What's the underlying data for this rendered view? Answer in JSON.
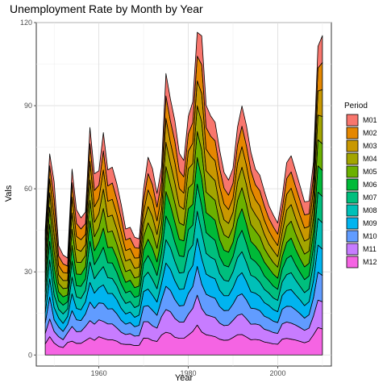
{
  "chart_data": {
    "type": "area",
    "stacked": true,
    "title": "Unemployment Rate by Month by Year",
    "xlabel": "Year",
    "ylabel": "Vals",
    "xlim": [
      1946,
      2012
    ],
    "ylim": [
      -4,
      120
    ],
    "x_ticks": [
      1960,
      1980,
      2000
    ],
    "y_ticks": [
      0,
      30,
      60,
      90,
      120
    ],
    "grid": true,
    "legend": {
      "title": "Period",
      "position": "right"
    },
    "x": [
      1948,
      1949,
      1950,
      1951,
      1952,
      1953,
      1954,
      1955,
      1956,
      1957,
      1958,
      1959,
      1960,
      1961,
      1962,
      1963,
      1964,
      1965,
      1966,
      1967,
      1968,
      1969,
      1970,
      1971,
      1972,
      1973,
      1974,
      1975,
      1976,
      1977,
      1978,
      1979,
      1980,
      1981,
      1982,
      1983,
      1984,
      1985,
      1986,
      1987,
      1988,
      1989,
      1990,
      1991,
      1992,
      1993,
      1994,
      1995,
      1996,
      1997,
      1998,
      1999,
      2000,
      2001,
      2002,
      2003,
      2004,
      2005,
      2006,
      2007,
      2008,
      2009,
      2010
    ],
    "series": [
      {
        "name": "M01",
        "color": "#F8766D",
        "values": [
          3.4,
          4.3,
          6.5,
          3.7,
          3.2,
          2.9,
          4.9,
          4.9,
          4.0,
          4.2,
          5.8,
          6.0,
          5.2,
          6.6,
          5.8,
          5.7,
          5.6,
          4.9,
          4.0,
          3.9,
          3.7,
          3.4,
          3.9,
          5.9,
          5.8,
          4.9,
          5.1,
          8.1,
          7.9,
          7.5,
          6.4,
          5.9,
          6.3,
          7.5,
          8.6,
          10.4,
          8.0,
          7.3,
          6.7,
          6.6,
          5.7,
          5.4,
          5.4,
          6.4,
          7.3,
          7.3,
          6.6,
          5.6,
          5.6,
          5.3,
          4.6,
          4.3,
          4.0,
          4.2,
          5.7,
          5.8,
          5.7,
          5.3,
          4.7,
          4.6,
          5.0,
          7.8,
          9.7
        ]
      },
      {
        "name": "M02",
        "color": "#E58700",
        "values": [
          3.8,
          4.7,
          6.4,
          3.4,
          3.1,
          2.6,
          5.2,
          4.7,
          3.9,
          3.9,
          6.4,
          5.9,
          4.8,
          6.9,
          5.5,
          5.9,
          5.4,
          5.1,
          3.8,
          3.8,
          3.8,
          3.4,
          4.2,
          5.9,
          5.7,
          5.0,
          5.2,
          8.1,
          7.7,
          7.6,
          6.3,
          5.9,
          6.3,
          7.4,
          8.9,
          10.4,
          7.8,
          7.2,
          7.2,
          6.6,
          5.7,
          5.2,
          5.3,
          6.6,
          7.4,
          7.1,
          6.6,
          5.4,
          5.5,
          5.2,
          4.6,
          4.4,
          4.1,
          4.2,
          5.7,
          5.9,
          5.6,
          5.4,
          4.8,
          4.5,
          4.8,
          8.3,
          9.8
        ]
      },
      {
        "name": "M03",
        "color": "#C99800",
        "values": [
          4.0,
          5.0,
          6.3,
          3.4,
          2.9,
          2.6,
          5.7,
          4.6,
          4.2,
          3.7,
          6.7,
          5.6,
          5.4,
          6.9,
          5.6,
          5.7,
          5.4,
          4.7,
          3.8,
          3.8,
          3.7,
          3.4,
          4.4,
          6.0,
          5.8,
          4.9,
          5.1,
          8.6,
          7.6,
          7.4,
          6.3,
          5.8,
          6.3,
          7.4,
          9.0,
          10.3,
          7.8,
          7.2,
          7.2,
          6.6,
          5.7,
          5.0,
          5.2,
          6.8,
          7.4,
          7.0,
          6.5,
          5.4,
          5.5,
          5.1,
          4.7,
          4.2,
          4.0,
          4.3,
          5.7,
          5.9,
          5.8,
          5.2,
          4.7,
          4.4,
          5.1,
          8.7,
          9.7
        ]
      },
      {
        "name": "M04",
        "color": "#A3A500",
        "values": [
          3.9,
          5.3,
          5.8,
          3.1,
          2.9,
          2.7,
          5.9,
          4.7,
          4.0,
          3.9,
          7.4,
          5.2,
          5.2,
          7.0,
          5.6,
          5.7,
          5.3,
          4.8,
          3.8,
          3.8,
          3.5,
          3.4,
          4.6,
          5.9,
          5.7,
          5.0,
          5.1,
          8.8,
          7.7,
          7.2,
          6.1,
          5.8,
          6.9,
          7.2,
          9.3,
          10.2,
          7.7,
          7.3,
          7.1,
          6.3,
          5.4,
          5.2,
          5.4,
          6.7,
          7.4,
          7.1,
          6.4,
          5.8,
          5.6,
          5.1,
          4.3,
          4.3,
          3.8,
          4.4,
          5.9,
          6.0,
          5.6,
          5.2,
          4.7,
          4.5,
          5.0,
          8.9,
          9.9
        ]
      },
      {
        "name": "M05",
        "color": "#6BB100",
        "values": [
          3.5,
          6.1,
          5.5,
          3.0,
          3.0,
          2.5,
          5.9,
          4.3,
          4.3,
          4.1,
          7.4,
          5.1,
          5.1,
          7.1,
          5.5,
          5.9,
          5.1,
          4.6,
          3.9,
          3.8,
          3.5,
          3.4,
          4.8,
          5.9,
          5.7,
          4.9,
          5.1,
          9.0,
          7.4,
          7.0,
          6.0,
          5.6,
          7.5,
          7.5,
          9.4,
          10.1,
          7.4,
          7.2,
          7.2,
          6.3,
          5.6,
          5.2,
          5.4,
          6.9,
          7.6,
          7.1,
          6.1,
          5.6,
          5.6,
          4.9,
          4.4,
          4.2,
          4.0,
          4.3,
          5.8,
          6.1,
          5.6,
          5.1,
          4.6,
          4.4,
          5.4,
          9.4,
          9.6
        ]
      },
      {
        "name": "M06",
        "color": "#00BA38",
        "values": [
          3.6,
          6.2,
          5.4,
          3.2,
          3.0,
          2.5,
          5.6,
          4.2,
          4.3,
          4.3,
          7.3,
          5.0,
          5.4,
          6.9,
          5.5,
          5.7,
          5.2,
          4.6,
          3.8,
          3.9,
          3.5,
          3.5,
          4.9,
          5.9,
          5.7,
          4.9,
          5.4,
          8.8,
          7.6,
          7.2,
          5.9,
          5.7,
          7.6,
          7.5,
          9.6,
          10.1,
          7.2,
          7.4,
          7.2,
          6.2,
          5.4,
          5.3,
          5.2,
          6.9,
          7.8,
          7.0,
          6.1,
          5.6,
          5.3,
          5.0,
          4.5,
          4.3,
          4.0,
          4.5,
          5.8,
          6.3,
          5.6,
          5.0,
          4.6,
          4.6,
          5.6,
          9.5,
          9.4
        ]
      },
      {
        "name": "M07",
        "color": "#00BF7D",
        "values": [
          3.6,
          6.7,
          5.0,
          3.1,
          3.2,
          2.6,
          5.8,
          4.0,
          4.4,
          4.2,
          7.5,
          5.1,
          5.5,
          7.0,
          5.4,
          5.6,
          4.9,
          4.4,
          3.8,
          3.8,
          3.7,
          3.5,
          5.0,
          6.0,
          5.6,
          4.8,
          5.5,
          8.6,
          7.8,
          6.9,
          6.2,
          5.7,
          7.8,
          7.2,
          9.8,
          9.4,
          7.5,
          7.4,
          7.0,
          6.1,
          5.4,
          5.2,
          5.5,
          6.8,
          7.7,
          6.9,
          6.1,
          5.7,
          5.5,
          4.9,
          4.5,
          4.3,
          4.0,
          4.6,
          5.8,
          6.2,
          5.5,
          5.0,
          4.7,
          4.7,
          5.8,
          9.5,
          9.5
        ]
      },
      {
        "name": "M08",
        "color": "#00C0B8",
        "values": [
          3.9,
          6.8,
          4.5,
          3.1,
          3.4,
          2.7,
          6.0,
          4.2,
          4.1,
          4.1,
          7.4,
          5.2,
          5.6,
          6.6,
          5.7,
          5.4,
          5.0,
          4.4,
          3.8,
          3.8,
          3.5,
          3.5,
          5.1,
          6.1,
          5.6,
          4.8,
          5.5,
          8.4,
          7.8,
          7.0,
          5.9,
          6.0,
          7.7,
          7.4,
          9.8,
          9.5,
          7.5,
          7.1,
          6.9,
          6.0,
          5.6,
          5.2,
          5.7,
          6.9,
          7.6,
          6.8,
          6.0,
          5.7,
          5.1,
          4.8,
          4.5,
          4.2,
          4.1,
          4.9,
          5.7,
          6.1,
          5.4,
          4.9,
          4.7,
          4.6,
          6.1,
          9.6,
          9.5
        ]
      },
      {
        "name": "M09",
        "color": "#00B4EF",
        "values": [
          3.8,
          6.6,
          4.4,
          3.3,
          2.9,
          2.9,
          6.1,
          4.1,
          3.9,
          4.4,
          7.1,
          5.5,
          5.5,
          6.7,
          5.6,
          5.5,
          5.1,
          4.3,
          3.7,
          3.8,
          3.4,
          3.7,
          5.4,
          6.0,
          5.5,
          4.8,
          5.9,
          8.4,
          7.6,
          6.8,
          6.0,
          5.9,
          7.5,
          7.6,
          10.1,
          9.2,
          7.3,
          7.1,
          7.0,
          5.9,
          5.4,
          5.3,
          5.9,
          6.9,
          7.6,
          6.7,
          5.9,
          5.6,
          5.2,
          4.9,
          4.6,
          4.2,
          3.9,
          5.0,
          5.7,
          6.1,
          5.4,
          5.0,
          4.5,
          4.7,
          6.2,
          9.8,
          9.5
        ]
      },
      {
        "name": "M10",
        "color": "#619CFF",
        "values": [
          3.7,
          7.9,
          4.2,
          3.5,
          3.0,
          3.0,
          5.7,
          4.3,
          3.9,
          4.5,
          6.7,
          5.7,
          6.1,
          6.5,
          5.4,
          5.5,
          5.1,
          4.3,
          3.7,
          4.0,
          3.4,
          3.7,
          5.5,
          5.8,
          5.6,
          4.6,
          6.0,
          8.4,
          7.7,
          6.8,
          5.8,
          6.0,
          7.5,
          7.9,
          10.4,
          8.8,
          7.4,
          7.1,
          7.0,
          6.0,
          5.4,
          5.3,
          5.9,
          7.0,
          7.3,
          6.8,
          5.8,
          5.5,
          5.2,
          4.7,
          4.5,
          4.1,
          3.9,
          5.3,
          5.7,
          6.0,
          5.5,
          5.0,
          4.4,
          4.8,
          6.6,
          10.1,
          9.5
        ]
      },
      {
        "name": "M11",
        "color": "#C77CFF",
        "values": [
          3.8,
          6.4,
          4.2,
          3.5,
          2.8,
          3.5,
          5.3,
          4.2,
          4.3,
          5.1,
          6.2,
          5.8,
          6.1,
          6.1,
          5.7,
          5.7,
          4.8,
          4.2,
          3.6,
          3.9,
          3.4,
          3.5,
          5.9,
          6.0,
          5.3,
          4.8,
          6.6,
          8.2,
          7.8,
          6.8,
          5.9,
          5.9,
          7.5,
          8.3,
          10.8,
          8.5,
          7.2,
          7.0,
          6.9,
          5.8,
          5.3,
          5.4,
          6.2,
          7.0,
          7.4,
          6.6,
          5.6,
          5.6,
          5.4,
          4.6,
          4.4,
          4.1,
          3.9,
          5.5,
          5.9,
          5.8,
          5.4,
          5.0,
          4.5,
          4.7,
          6.8,
          9.9,
          9.8
        ]
      },
      {
        "name": "M12",
        "color": "#F564E3",
        "values": [
          4.0,
          6.6,
          4.3,
          3.1,
          2.7,
          4.5,
          5.0,
          4.2,
          4.2,
          5.2,
          6.2,
          5.3,
          6.6,
          6.0,
          5.5,
          5.5,
          5.0,
          4.0,
          3.8,
          3.8,
          3.4,
          3.5,
          6.1,
          6.0,
          5.2,
          4.9,
          7.2,
          8.2,
          7.8,
          6.4,
          6.0,
          6.0,
          7.2,
          8.5,
          10.8,
          8.3,
          7.3,
          7.0,
          6.6,
          5.7,
          5.3,
          5.4,
          6.3,
          7.3,
          7.4,
          6.5,
          5.5,
          5.6,
          5.4,
          4.7,
          4.4,
          4.0,
          3.9,
          5.7,
          6.0,
          5.7,
          5.4,
          4.9,
          4.4,
          5.0,
          7.3,
          9.9,
          9.4
        ]
      }
    ]
  }
}
